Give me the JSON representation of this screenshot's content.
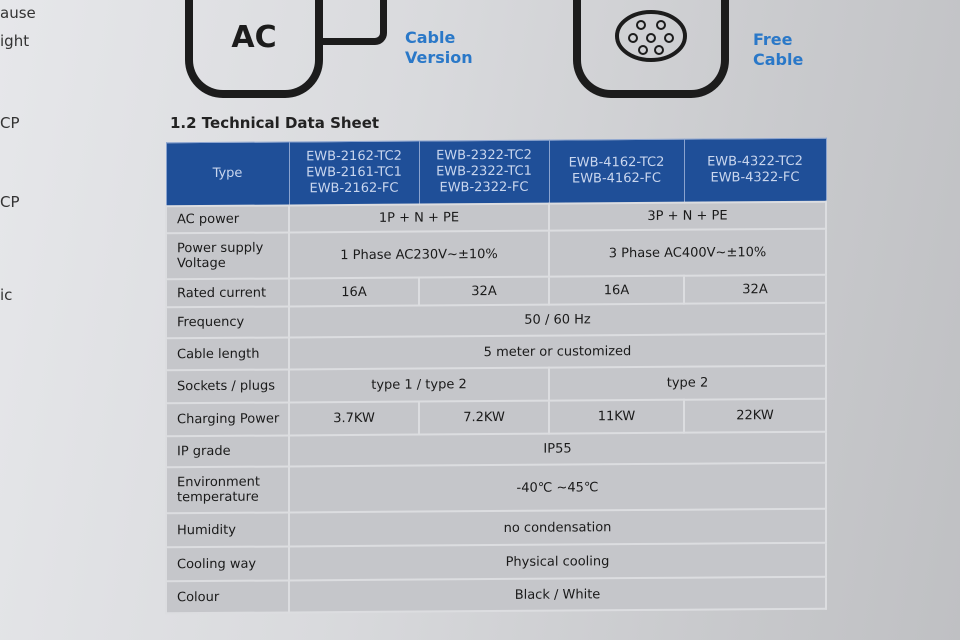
{
  "side_text": [
    "ause",
    "ight",
    "CP",
    "CP",
    "ic"
  ],
  "icons": [
    {
      "glyph": "AC",
      "label_lines": [
        "Cable",
        "Version"
      ]
    },
    {
      "glyph": "socket",
      "label_lines": [
        "Free",
        "Cable"
      ]
    }
  ],
  "section_title": "1.2 Technical Data Sheet",
  "table": {
    "header": {
      "label": "Type",
      "models": [
        [
          "EWB-2162-TC2",
          "EWB-2161-TC1",
          "EWB-2162-FC"
        ],
        [
          "EWB-2322-TC2",
          "EWB-2322-TC1",
          "EWB-2322-FC"
        ],
        [
          "EWB-4162-TC2",
          "EWB-4162-FC"
        ],
        [
          "EWB-4322-TC2",
          "EWB-4322-FC"
        ]
      ]
    },
    "rows": [
      {
        "label": "AC power",
        "cells": [
          "1P + N + PE",
          "3P + N + PE"
        ]
      },
      {
        "label": "Power supply Voltage",
        "cells": [
          "1 Phase  AC230V~±10%",
          "3 Phase  AC400V~±10%"
        ]
      },
      {
        "label": "Rated current",
        "cells": [
          "16A",
          "32A",
          "16A",
          "32A"
        ]
      },
      {
        "label": "Frequency",
        "cells": [
          "50 / 60 Hz"
        ]
      },
      {
        "label": "Cable length",
        "cells": [
          "5 meter or customized"
        ]
      },
      {
        "label": "Sockets / plugs",
        "cells": [
          "type 1 / type 2",
          "type 2"
        ]
      },
      {
        "label": "Charging Power",
        "cells": [
          "3.7KW",
          "7.2KW",
          "11KW",
          "22KW"
        ]
      },
      {
        "label": "IP grade",
        "cells": [
          "IP55"
        ]
      },
      {
        "label": "Environment temperature",
        "cells": [
          "-40℃ ~45℃"
        ]
      },
      {
        "label": "Humidity",
        "cells": [
          "no condensation"
        ]
      },
      {
        "label": "Cooling way",
        "cells": [
          "Physical cooling"
        ]
      },
      {
        "label": "Colour",
        "cells": [
          "Black / White"
        ]
      }
    ]
  }
}
